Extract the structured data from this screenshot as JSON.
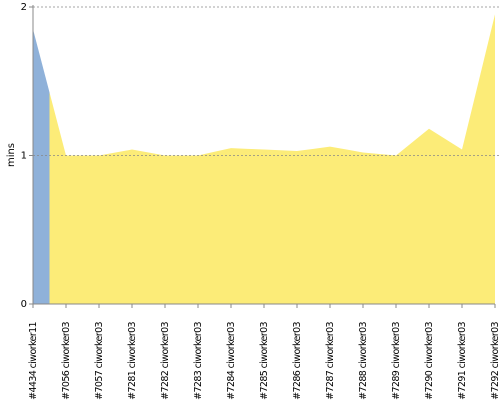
{
  "chart_data": {
    "type": "area",
    "y_label": "mins",
    "categories": [
      "#4434 ciworker11",
      "#7056 ciworker03",
      "#7057 ciworker03",
      "#7281 ciworker03",
      "#7282 ciworker03",
      "#7283 ciworker03",
      "#7284 ciworker03",
      "#7285 ciworker03",
      "#7286 ciworker03",
      "#7287 ciworker03",
      "#7288 ciworker03",
      "#7289 ciworker03",
      "#7290 ciworker03",
      "#7291 ciworker03",
      "#7292 ciworker03"
    ],
    "series": [
      {
        "color": "#8fb1d9",
        "values": [
          1.85,
          null,
          null,
          null,
          null,
          null,
          null,
          null,
          null,
          null,
          null,
          null,
          null,
          null,
          null
        ]
      },
      {
        "color": "#fcec78",
        "values": [
          null,
          1.0,
          1.0,
          1.04,
          1.0,
          1.0,
          1.05,
          1.04,
          1.03,
          1.06,
          1.02,
          1.0,
          1.18,
          1.04,
          1.95
        ]
      }
    ],
    "ylim": [
      0,
      2
    ],
    "yticks": [
      0,
      1,
      2
    ],
    "grid": true
  }
}
